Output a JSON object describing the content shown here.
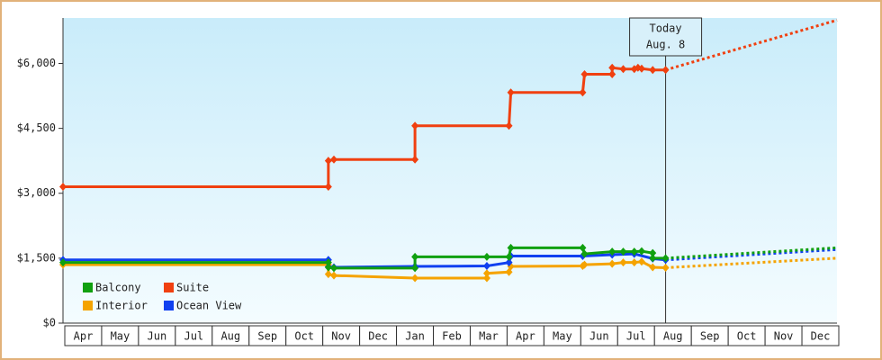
{
  "chart_data": {
    "type": "step-line",
    "months": [
      "Apr",
      "May",
      "Jun",
      "Jul",
      "Aug",
      "Sep",
      "Oct",
      "Nov",
      "Dec",
      "Jan",
      "Feb",
      "Mar",
      "Apr",
      "May",
      "Jun",
      "Jul",
      "Aug",
      "Sep",
      "Oct",
      "Nov",
      "Dec"
    ],
    "xlim": [
      0,
      21
    ],
    "ylim": [
      0,
      7050
    ],
    "yticks": [
      {
        "value": 0,
        "label": "$0"
      },
      {
        "value": 1500,
        "label": "$1,500"
      },
      {
        "value": 3000,
        "label": "$3,000"
      },
      {
        "value": 4500,
        "label": "$4,500"
      },
      {
        "value": 6000,
        "label": "$6,000"
      }
    ],
    "today": {
      "x": 16.35,
      "label": "Today",
      "date": "Aug. 8"
    },
    "series": [
      {
        "name": "Interior",
        "color": "#f5a300",
        "x": [
          0,
          7.2,
          7.2,
          7.35,
          9.55,
          11.5,
          11.5,
          12.1,
          12.15,
          14.1,
          14.15,
          14.9,
          15.2,
          15.5,
          15.7,
          16.0,
          16.35
        ],
        "values": [
          1350,
          1350,
          1130,
          1100,
          1040,
          1040,
          1150,
          1180,
          1310,
          1320,
          1350,
          1370,
          1400,
          1400,
          1420,
          1290,
          1280
        ],
        "forecast": {
          "x": [
            16.35,
            21
          ],
          "values": [
            1280,
            1500
          ]
        }
      },
      {
        "name": "Ocean View",
        "color": "#1040f0",
        "x": [
          0,
          7.2,
          7.2,
          7.35,
          9.55,
          11.5,
          12.1,
          12.15,
          14.1,
          14.9,
          15.5,
          16.0,
          16.35
        ],
        "values": [
          1460,
          1460,
          1300,
          1290,
          1310,
          1320,
          1400,
          1550,
          1550,
          1580,
          1600,
          1490,
          1460
        ],
        "forecast": {
          "x": [
            16.35,
            21
          ],
          "values": [
            1460,
            1700
          ]
        }
      },
      {
        "name": "Balcony",
        "color": "#10a010",
        "x": [
          0,
          7.2,
          7.2,
          7.35,
          9.55,
          9.55,
          11.5,
          12.1,
          12.15,
          14.1,
          14.15,
          14.9,
          15.2,
          15.5,
          15.7,
          16.0,
          16.0,
          16.35
        ],
        "values": [
          1400,
          1400,
          1290,
          1270,
          1270,
          1530,
          1530,
          1530,
          1740,
          1740,
          1600,
          1650,
          1650,
          1650,
          1660,
          1620,
          1500,
          1500
        ],
        "forecast": {
          "x": [
            16.35,
            21
          ],
          "values": [
            1500,
            1740
          ]
        }
      },
      {
        "name": "Suite",
        "color": "#f04010",
        "x": [
          0,
          7.2,
          7.2,
          7.35,
          9.55,
          9.55,
          12.1,
          12.15,
          14.1,
          14.15,
          14.9,
          14.9,
          15.2,
          15.5,
          15.6,
          15.7,
          16.0,
          16.35
        ],
        "values": [
          3150,
          3150,
          3750,
          3780,
          3780,
          4560,
          4560,
          5330,
          5330,
          5750,
          5750,
          5900,
          5870,
          5870,
          5900,
          5880,
          5850,
          5850
        ],
        "forecast": {
          "x": [
            16.35,
            21
          ],
          "values": [
            5850,
            7000
          ]
        }
      }
    ],
    "legend_order": [
      2,
      3,
      0,
      1
    ]
  }
}
